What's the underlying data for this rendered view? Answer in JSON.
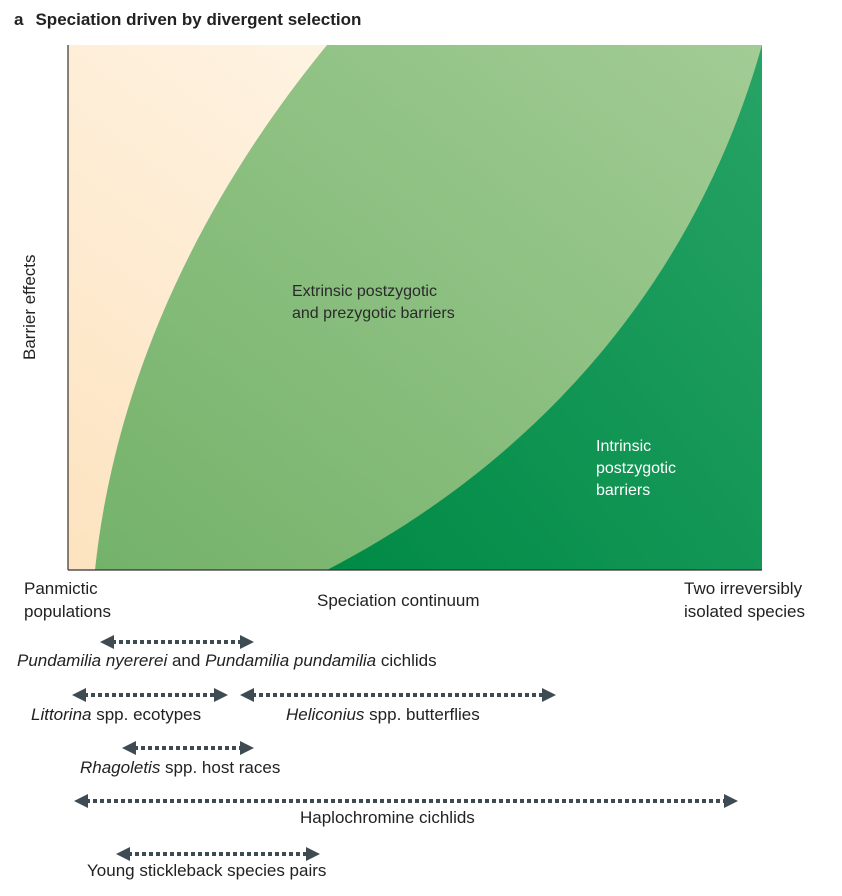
{
  "panel": {
    "letter": "a",
    "title": "Speciation driven by divergent selection"
  },
  "axes": {
    "y_label": "Barrier effects",
    "x_label": "Speciation continuum",
    "x_start_label_line1": "Panmictic",
    "x_start_label_line2": "populations",
    "x_end_label_line1": "Two irreversibly",
    "x_end_label_line2": "isolated species"
  },
  "regions": {
    "extrinsic_line1": "Extrinsic postzygotic",
    "extrinsic_line2": "and prezygotic barriers",
    "intrinsic_line1": "Intrinsic",
    "intrinsic_line2": "postzygotic",
    "intrinsic_line3": "barriers"
  },
  "colors": {
    "panmictic_fill": "#fde9cc",
    "extrinsic_fill": "#8dc182",
    "intrinsic_fill": "#1a9a59",
    "arrow": "#3f4b52"
  },
  "ranges": [
    {
      "id": "pundamilia",
      "parts": [
        {
          "text": "Pundamilia nyererei",
          "italic": true
        },
        {
          "text": " and ",
          "italic": false
        },
        {
          "text": "Pundamilia pundamilia",
          "italic": true
        },
        {
          "text": " cichlids",
          "italic": false
        }
      ]
    },
    {
      "id": "littorina",
      "parts": [
        {
          "text": "Littorina",
          "italic": true
        },
        {
          "text": " spp. ecotypes",
          "italic": false
        }
      ]
    },
    {
      "id": "heliconius",
      "parts": [
        {
          "text": "Heliconius",
          "italic": true
        },
        {
          "text": " spp. butterflies",
          "italic": false
        }
      ]
    },
    {
      "id": "rhagoletis",
      "parts": [
        {
          "text": "Rhagoletis",
          "italic": true
        },
        {
          "text": " spp. host races",
          "italic": false
        }
      ]
    },
    {
      "id": "haplochromine",
      "parts": [
        {
          "text": "Haplochromine cichlids",
          "italic": false
        }
      ]
    },
    {
      "id": "stickleback",
      "parts": [
        {
          "text": "Young stickleback species pairs",
          "italic": false
        }
      ]
    }
  ]
}
